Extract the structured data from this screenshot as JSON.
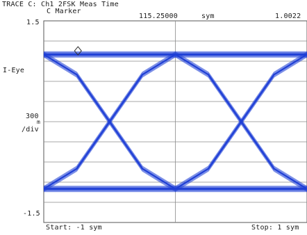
{
  "header": {
    "trace_title": "TRACE C: Ch1 2FSK Meas Time",
    "marker_label": "C Marker",
    "marker_x": "115.25000",
    "marker_x_unit": "sym",
    "marker_y": "1.0022"
  },
  "axis": {
    "y_top_label": "1.5",
    "y_bottom_label": "-1.5",
    "trace_name": "I-Eye",
    "scale_value": "300",
    "scale_prefix": "m",
    "scale_unit": "/div",
    "start_label": "Start: -1 sym",
    "stop_label": "Stop: 1 sym"
  },
  "colors": {
    "trace": "#1f3fd6",
    "grid": "#8a8a8a",
    "frame": "#555555",
    "text": "#1a1a1a"
  },
  "chart_data": {
    "type": "line",
    "title": "TRACE C: Ch1 2FSK Meas Time",
    "ylabel": "I-Eye",
    "xlim": [
      -1,
      1
    ],
    "ylim": [
      -1.5,
      1.5
    ],
    "y_per_div": 0.3,
    "x_divisions": 10,
    "y_divisions": 10,
    "grid": true,
    "marker": {
      "x": 115.25,
      "y": 1.0022
    },
    "series": [
      {
        "x": [
          -1.0,
          -0.75,
          -0.5,
          -0.25,
          0.0,
          0.25,
          0.5,
          0.75,
          1.0
        ],
        "values": [
          1.0,
          1.0,
          1.0,
          1.0,
          1.0,
          1.0,
          1.0,
          1.0,
          1.0
        ]
      },
      {
        "x": [
          -1.0,
          -0.75,
          -0.5,
          -0.25,
          0.0,
          0.25,
          0.5,
          0.75,
          1.0
        ],
        "values": [
          -1.0,
          -1.0,
          -1.0,
          -1.0,
          -1.0,
          -1.0,
          -1.0,
          -1.0,
          -1.0
        ]
      },
      {
        "x": [
          -1.0,
          -0.75,
          -0.5,
          -0.25,
          0.0,
          0.25,
          0.5,
          0.75,
          1.0
        ],
        "values": [
          1.0,
          0.7,
          0.0,
          -0.7,
          -1.0,
          -0.7,
          0.0,
          0.7,
          1.0
        ]
      },
      {
        "x": [
          -1.0,
          -0.75,
          -0.5,
          -0.25,
          0.0,
          0.25,
          0.5,
          0.75,
          1.0
        ],
        "values": [
          -1.0,
          -0.7,
          0.0,
          0.7,
          1.0,
          0.7,
          0.0,
          -0.7,
          -1.0
        ]
      }
    ]
  }
}
